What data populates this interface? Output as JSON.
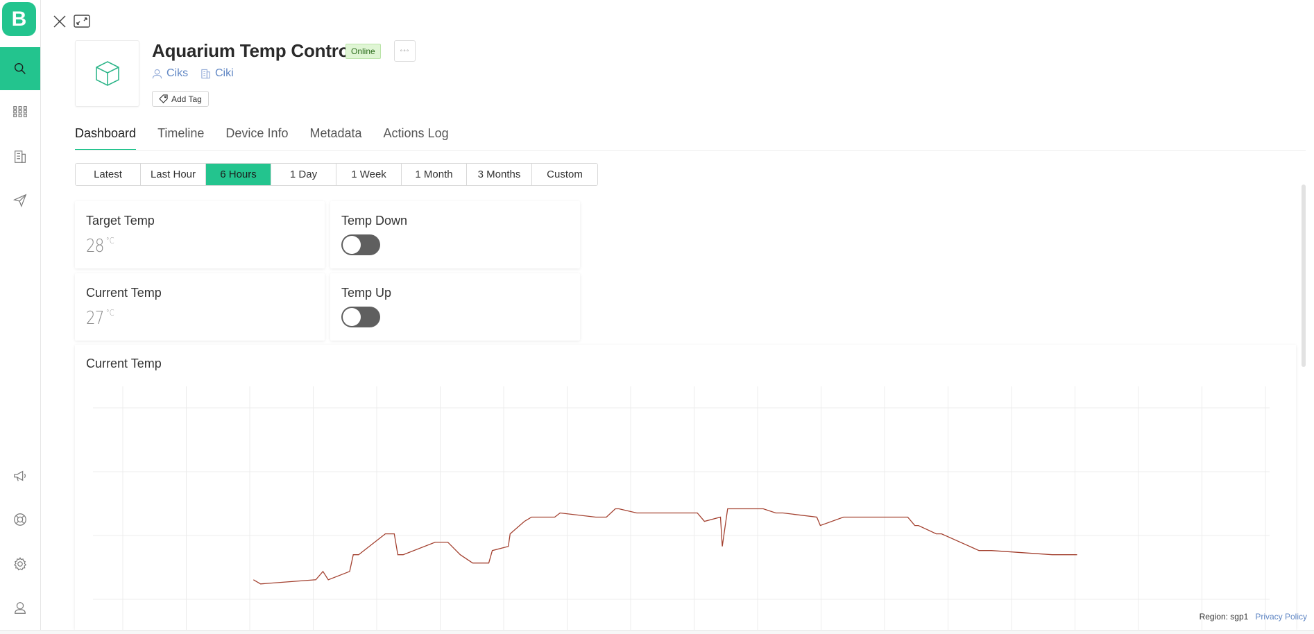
{
  "app": {
    "logo_letter": "B",
    "brand_color": "#23c48e"
  },
  "sidebar": {
    "items": [
      {
        "name": "search",
        "icon": "search-icon",
        "active": true
      },
      {
        "name": "apps",
        "icon": "grid-icon",
        "active": false
      },
      {
        "name": "organizations",
        "icon": "building-icon",
        "active": false
      },
      {
        "name": "messages",
        "icon": "send-icon",
        "active": false
      },
      {
        "name": "announcements",
        "icon": "megaphone-icon",
        "active": false
      },
      {
        "name": "help",
        "icon": "lifebuoy-icon",
        "active": false
      },
      {
        "name": "settings",
        "icon": "gear-icon",
        "active": false
      },
      {
        "name": "profile",
        "icon": "user-icon",
        "active": false
      }
    ]
  },
  "device": {
    "title": "Aquarium Temp Control",
    "status": "Online",
    "more_label": "◦◦◦",
    "owner": "Ciks",
    "organization": "Ciki",
    "add_tag_label": "Add Tag",
    "thumb_icon": "cube-icon"
  },
  "tabs": [
    {
      "label": "Dashboard",
      "active": true
    },
    {
      "label": "Timeline",
      "active": false
    },
    {
      "label": "Device Info",
      "active": false
    },
    {
      "label": "Metadata",
      "active": false
    },
    {
      "label": "Actions Log",
      "active": false
    }
  ],
  "time_range": {
    "options": [
      "Latest",
      "Last Hour",
      "6 Hours",
      "1 Day",
      "1 Week",
      "1 Month",
      "3 Months",
      "Custom"
    ],
    "selected": "6 Hours"
  },
  "widgets": {
    "target_temp": {
      "title": "Target Temp",
      "value": "28",
      "unit": "°C"
    },
    "temp_down": {
      "title": "Temp Down",
      "on": false
    },
    "current_temp": {
      "title": "Current Temp",
      "value": "27",
      "unit": "°C"
    },
    "temp_up": {
      "title": "Temp Up",
      "on": false
    }
  },
  "chart": {
    "title": "Current Temp",
    "line_color": "#a3402f"
  },
  "chart_data": {
    "type": "line",
    "title": "Current Temp",
    "xlabel": "",
    "ylabel": "",
    "grid": true,
    "x": [
      0,
      0.4,
      3.5,
      3.9,
      4.2,
      5.4,
      5.6,
      5.9,
      7.4,
      7.9,
      8.1,
      8.4,
      10.2,
      10.9,
      11.6,
      12.3,
      13.2,
      13.4,
      14.3,
      14.4,
      15.2,
      15.6,
      16.9,
      17.2,
      19.2,
      19.8,
      20.3,
      20.5,
      21.5,
      24.9,
      25.3,
      26.2,
      26.3,
      26.6,
      28.6,
      29.3,
      29.7,
      31.6,
      31.8,
      33.1,
      36.7,
      37.1,
      37.3,
      38.3,
      38.6,
      40.7,
      41.2,
      41.4,
      44.8,
      45.4,
      46.2
    ],
    "y": [
      26.1,
      26.05,
      26.1,
      26.2,
      26.1,
      26.2,
      26.4,
      26.4,
      26.65,
      26.65,
      26.4,
      26.4,
      26.55,
      26.55,
      26.4,
      26.3,
      26.3,
      26.45,
      26.5,
      26.65,
      26.8,
      26.85,
      26.85,
      26.9,
      26.85,
      26.85,
      26.95,
      26.95,
      26.9,
      26.9,
      26.8,
      26.85,
      26.5,
      26.95,
      26.95,
      26.9,
      26.9,
      26.85,
      26.75,
      26.85,
      26.85,
      26.75,
      26.75,
      26.65,
      26.65,
      26.45,
      26.45,
      26.45,
      26.4,
      26.4,
      26.4
    ],
    "ylim": [
      25.5,
      28.5
    ]
  },
  "footer": {
    "region": "Region: sgp1",
    "privacy": "Privacy Policy"
  }
}
